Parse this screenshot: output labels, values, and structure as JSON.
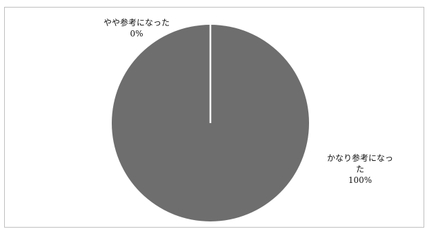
{
  "chart_data": {
    "type": "pie",
    "title": "",
    "slices": [
      {
        "label_lines": [
          "やや参考になった",
          "0%"
        ],
        "value": 0
      },
      {
        "label_lines": [
          "かなり参考になっ",
          "た",
          "100%"
        ],
        "value": 100
      }
    ],
    "colors": {
      "slice": "#6e6e6e",
      "separator": "#ffffff",
      "border": "#bfbfbf"
    },
    "legend": "none"
  }
}
